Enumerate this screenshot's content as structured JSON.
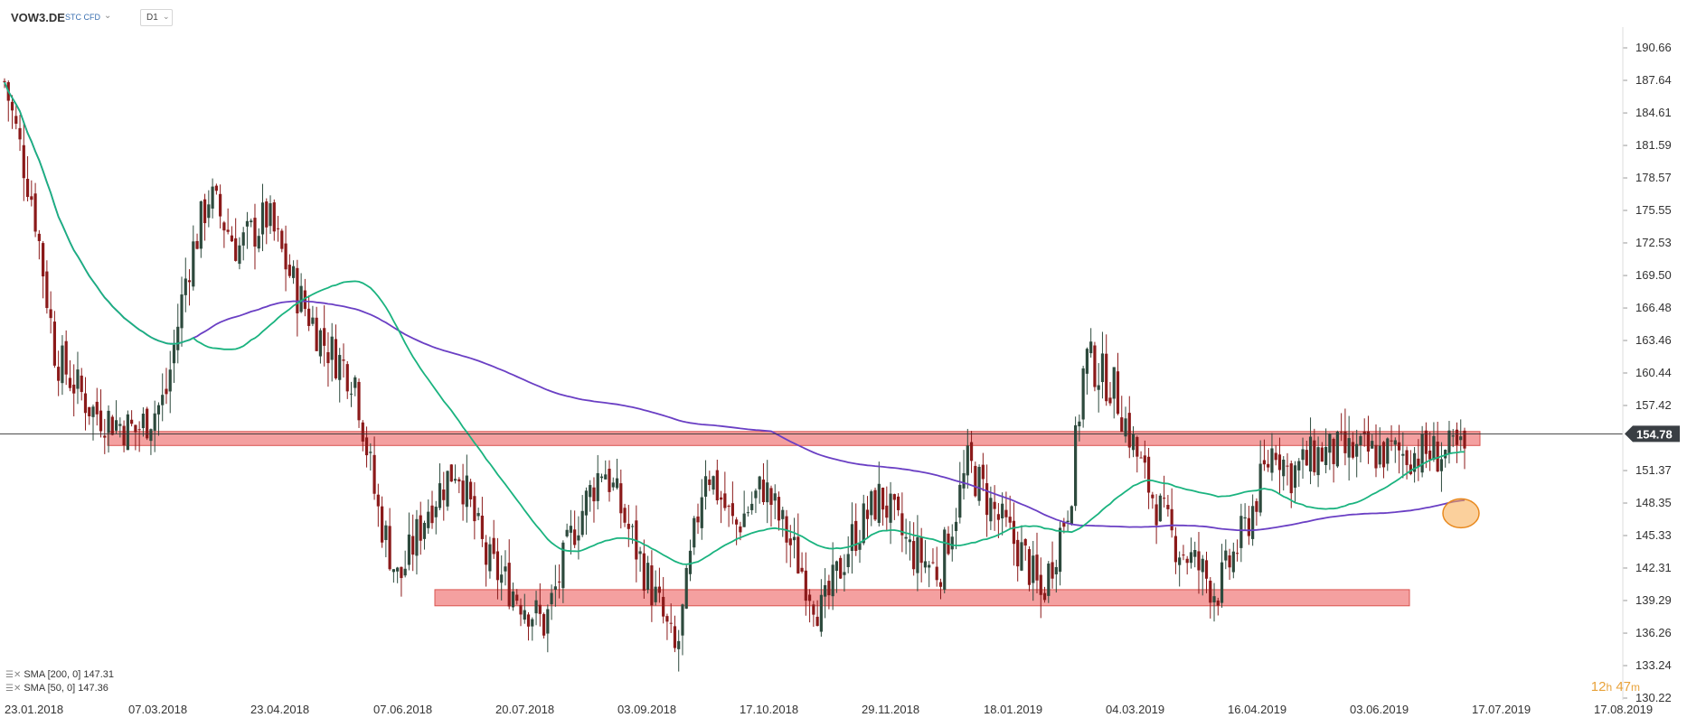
{
  "header": {
    "symbol": "VOW3.DE",
    "instrument_type": "STC CFD",
    "timeframe": "D1"
  },
  "legend": {
    "sma200": "SMA [200, 0] 147.31",
    "sma50": "SMA [50, 0] 147.36"
  },
  "timer": {
    "hours": "12",
    "h": "h",
    "minutes": "47",
    "m": "m"
  },
  "colors": {
    "bull": "#2d4a3d",
    "bear": "#8b1a1a",
    "sma50": "#1ab37f",
    "sma200": "#6a3fc4",
    "zone_fill": "#f08080",
    "zone_stroke": "#d9534f",
    "price_line": "#333333",
    "highlight": "#f7a94a"
  },
  "chart_data": {
    "type": "candlestick",
    "title": "",
    "y_ticks": [
      "190.66",
      "187.64",
      "184.61",
      "181.59",
      "178.57",
      "175.55",
      "172.53",
      "169.50",
      "166.48",
      "163.46",
      "160.44",
      "157.42",
      "154.78",
      "151.37",
      "148.35",
      "145.33",
      "142.31",
      "139.29",
      "136.26",
      "133.24",
      "130.22"
    ],
    "x_ticks": [
      "23.01.2018",
      "07.03.2018",
      "23.04.2018",
      "07.06.2018",
      "20.07.2018",
      "03.09.2018",
      "17.10.2018",
      "29.11.2018",
      "18.01.2019",
      "04.03.2019",
      "16.04.2019",
      "03.06.2019",
      "17.07.2019",
      "17.08.2019"
    ],
    "ylim": [
      130.22,
      193.0
    ],
    "last_price": 154.78,
    "support_zone": [
      138.8,
      140.3
    ],
    "resistance_zone": [
      153.7,
      155.0
    ],
    "sma200_last": 147.31,
    "sma50_last": 147.36,
    "approx_closes_anchor": [
      {
        "x": 0,
        "y": 187.5
      },
      {
        "x": 0.02,
        "y": 176
      },
      {
        "x": 0.035,
        "y": 162
      },
      {
        "x": 0.06,
        "y": 157
      },
      {
        "x": 0.09,
        "y": 155
      },
      {
        "x": 0.11,
        "y": 158
      },
      {
        "x": 0.125,
        "y": 170
      },
      {
        "x": 0.14,
        "y": 177
      },
      {
        "x": 0.16,
        "y": 172
      },
      {
        "x": 0.18,
        "y": 175
      },
      {
        "x": 0.2,
        "y": 168
      },
      {
        "x": 0.22,
        "y": 163
      },
      {
        "x": 0.24,
        "y": 160
      },
      {
        "x": 0.255,
        "y": 148
      },
      {
        "x": 0.27,
        "y": 141
      },
      {
        "x": 0.29,
        "y": 148
      },
      {
        "x": 0.31,
        "y": 152
      },
      {
        "x": 0.33,
        "y": 143
      },
      {
        "x": 0.35,
        "y": 140
      },
      {
        "x": 0.37,
        "y": 137
      },
      {
        "x": 0.39,
        "y": 146
      },
      {
        "x": 0.41,
        "y": 152
      },
      {
        "x": 0.43,
        "y": 145
      },
      {
        "x": 0.45,
        "y": 138
      },
      {
        "x": 0.46,
        "y": 134
      },
      {
        "x": 0.48,
        "y": 152
      },
      {
        "x": 0.5,
        "y": 146
      },
      {
        "x": 0.52,
        "y": 150
      },
      {
        "x": 0.54,
        "y": 144
      },
      {
        "x": 0.56,
        "y": 138
      },
      {
        "x": 0.58,
        "y": 145
      },
      {
        "x": 0.6,
        "y": 149
      },
      {
        "x": 0.62,
        "y": 144
      },
      {
        "x": 0.64,
        "y": 142
      },
      {
        "x": 0.66,
        "y": 152
      },
      {
        "x": 0.68,
        "y": 147
      },
      {
        "x": 0.7,
        "y": 143
      },
      {
        "x": 0.71,
        "y": 139.5
      },
      {
        "x": 0.73,
        "y": 149
      },
      {
        "x": 0.74,
        "y": 162
      },
      {
        "x": 0.76,
        "y": 159
      },
      {
        "x": 0.78,
        "y": 151
      },
      {
        "x": 0.8,
        "y": 145
      },
      {
        "x": 0.82,
        "y": 142
      },
      {
        "x": 0.83,
        "y": 140
      },
      {
        "x": 0.85,
        "y": 146
      },
      {
        "x": 0.87,
        "y": 154
      },
      {
        "x": 0.88,
        "y": 151
      },
      {
        "x": 0.9,
        "y": 153
      }
    ]
  }
}
